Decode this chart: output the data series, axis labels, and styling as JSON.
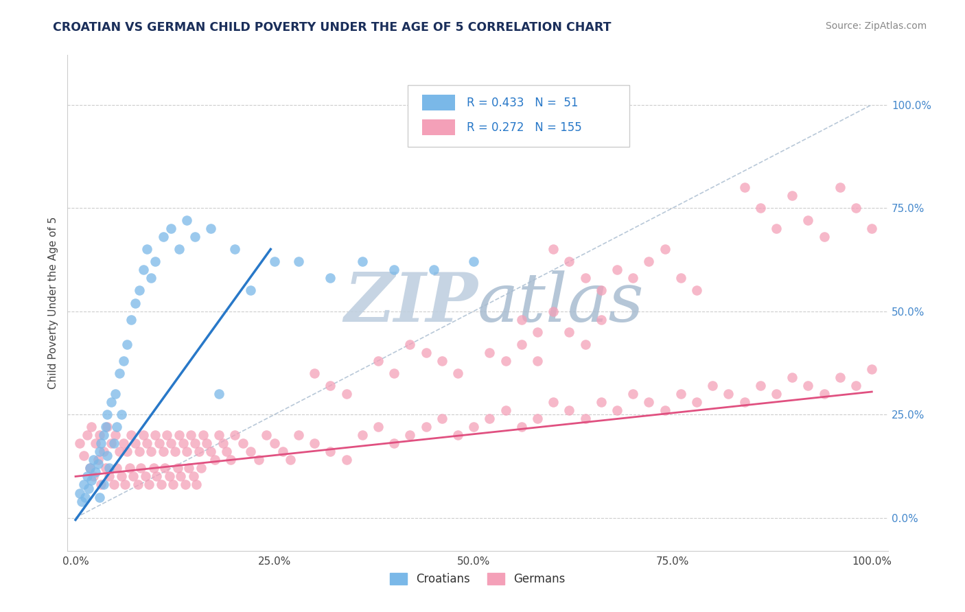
{
  "title": "CROATIAN VS GERMAN CHILD POVERTY UNDER THE AGE OF 5 CORRELATION CHART",
  "source_text": "Source: ZipAtlas.com",
  "ylabel": "Child Poverty Under the Age of 5",
  "xlim": [
    -0.01,
    1.02
  ],
  "ylim": [
    -0.08,
    1.12
  ],
  "xticks": [
    0.0,
    0.25,
    0.5,
    0.75,
    1.0
  ],
  "xticklabels": [
    "0.0%",
    "25.0%",
    "50.0%",
    "75.0%",
    "100.0%"
  ],
  "yticks_right": [
    0.0,
    0.25,
    0.5,
    0.75,
    1.0
  ],
  "yticklabels_right": [
    "0.0%",
    "25.0%",
    "50.0%",
    "75.0%",
    "100.0%"
  ],
  "croatian_color": "#7ab8e8",
  "german_color": "#f4a0b8",
  "croatian_line_color": "#2878c8",
  "german_line_color": "#e05080",
  "diagonal_color": "#b8c8d8",
  "watermark_zip_color": "#c8d8e8",
  "watermark_atlas_color": "#b8c8d8",
  "legend_text_color": "#2878c8",
  "legend_R_croatian": "R = 0.433",
  "legend_N_croatian": "N =  51",
  "legend_R_german": "R = 0.272",
  "legend_N_german": "N = 155",
  "croatian_line_x0": 0.0,
  "croatian_line_y0": -0.005,
  "croatian_line_x1": 0.245,
  "croatian_line_y1": 0.65,
  "german_line_x0": 0.0,
  "german_line_y0": 0.1,
  "german_line_x1": 1.0,
  "german_line_y1": 0.305,
  "croatian_scatter_x": [
    0.005,
    0.008,
    0.01,
    0.012,
    0.015,
    0.016,
    0.018,
    0.02,
    0.022,
    0.025,
    0.028,
    0.03,
    0.03,
    0.032,
    0.035,
    0.035,
    0.038,
    0.04,
    0.04,
    0.042,
    0.045,
    0.048,
    0.05,
    0.052,
    0.055,
    0.058,
    0.06,
    0.065,
    0.07,
    0.075,
    0.08,
    0.085,
    0.09,
    0.095,
    0.1,
    0.11,
    0.12,
    0.13,
    0.14,
    0.15,
    0.17,
    0.18,
    0.2,
    0.22,
    0.25,
    0.28,
    0.32,
    0.36,
    0.4,
    0.45,
    0.5
  ],
  "croatian_scatter_y": [
    0.06,
    0.04,
    0.08,
    0.05,
    0.1,
    0.07,
    0.12,
    0.09,
    0.14,
    0.11,
    0.13,
    0.16,
    0.05,
    0.18,
    0.2,
    0.08,
    0.22,
    0.15,
    0.25,
    0.12,
    0.28,
    0.18,
    0.3,
    0.22,
    0.35,
    0.25,
    0.38,
    0.42,
    0.48,
    0.52,
    0.55,
    0.6,
    0.65,
    0.58,
    0.62,
    0.68,
    0.7,
    0.65,
    0.72,
    0.68,
    0.7,
    0.3,
    0.65,
    0.55,
    0.62,
    0.62,
    0.58,
    0.62,
    0.6,
    0.6,
    0.62
  ],
  "german_scatter_x": [
    0.005,
    0.01,
    0.015,
    0.018,
    0.02,
    0.022,
    0.025,
    0.028,
    0.03,
    0.032,
    0.035,
    0.038,
    0.04,
    0.042,
    0.045,
    0.048,
    0.05,
    0.052,
    0.055,
    0.058,
    0.06,
    0.062,
    0.065,
    0.068,
    0.07,
    0.072,
    0.075,
    0.078,
    0.08,
    0.082,
    0.085,
    0.088,
    0.09,
    0.092,
    0.095,
    0.098,
    0.1,
    0.102,
    0.105,
    0.108,
    0.11,
    0.112,
    0.115,
    0.118,
    0.12,
    0.122,
    0.125,
    0.128,
    0.13,
    0.132,
    0.135,
    0.138,
    0.14,
    0.142,
    0.145,
    0.148,
    0.15,
    0.152,
    0.155,
    0.158,
    0.16,
    0.165,
    0.17,
    0.175,
    0.18,
    0.185,
    0.19,
    0.195,
    0.2,
    0.21,
    0.22,
    0.23,
    0.24,
    0.25,
    0.26,
    0.27,
    0.28,
    0.3,
    0.32,
    0.34,
    0.36,
    0.38,
    0.4,
    0.42,
    0.44,
    0.46,
    0.48,
    0.5,
    0.52,
    0.54,
    0.56,
    0.58,
    0.6,
    0.62,
    0.64,
    0.66,
    0.68,
    0.7,
    0.72,
    0.74,
    0.76,
    0.78,
    0.8,
    0.82,
    0.84,
    0.86,
    0.88,
    0.9,
    0.92,
    0.94,
    0.96,
    0.98,
    1.0,
    0.6,
    0.62,
    0.64,
    0.66,
    0.68,
    0.7,
    0.72,
    0.74,
    0.76,
    0.78,
    0.56,
    0.58,
    0.6,
    0.62,
    0.64,
    0.66,
    0.52,
    0.54,
    0.56,
    0.58,
    0.42,
    0.44,
    0.46,
    0.48,
    0.38,
    0.4,
    0.3,
    0.32,
    0.34,
    0.84,
    0.86,
    0.88,
    0.9,
    0.92,
    0.94,
    0.96,
    0.98,
    1.0
  ],
  "german_scatter_y": [
    0.18,
    0.15,
    0.2,
    0.12,
    0.22,
    0.1,
    0.18,
    0.14,
    0.2,
    0.08,
    0.16,
    0.12,
    0.22,
    0.1,
    0.18,
    0.08,
    0.2,
    0.12,
    0.16,
    0.1,
    0.18,
    0.08,
    0.16,
    0.12,
    0.2,
    0.1,
    0.18,
    0.08,
    0.16,
    0.12,
    0.2,
    0.1,
    0.18,
    0.08,
    0.16,
    0.12,
    0.2,
    0.1,
    0.18,
    0.08,
    0.16,
    0.12,
    0.2,
    0.1,
    0.18,
    0.08,
    0.16,
    0.12,
    0.2,
    0.1,
    0.18,
    0.08,
    0.16,
    0.12,
    0.2,
    0.1,
    0.18,
    0.08,
    0.16,
    0.12,
    0.2,
    0.18,
    0.16,
    0.14,
    0.2,
    0.18,
    0.16,
    0.14,
    0.2,
    0.18,
    0.16,
    0.14,
    0.2,
    0.18,
    0.16,
    0.14,
    0.2,
    0.18,
    0.16,
    0.14,
    0.2,
    0.22,
    0.18,
    0.2,
    0.22,
    0.24,
    0.2,
    0.22,
    0.24,
    0.26,
    0.22,
    0.24,
    0.28,
    0.26,
    0.24,
    0.28,
    0.26,
    0.3,
    0.28,
    0.26,
    0.3,
    0.28,
    0.32,
    0.3,
    0.28,
    0.32,
    0.3,
    0.34,
    0.32,
    0.3,
    0.34,
    0.32,
    0.36,
    0.65,
    0.62,
    0.58,
    0.55,
    0.6,
    0.58,
    0.62,
    0.65,
    0.58,
    0.55,
    0.48,
    0.45,
    0.5,
    0.45,
    0.42,
    0.48,
    0.4,
    0.38,
    0.42,
    0.38,
    0.42,
    0.4,
    0.38,
    0.35,
    0.38,
    0.35,
    0.35,
    0.32,
    0.3,
    0.8,
    0.75,
    0.7,
    0.78,
    0.72,
    0.68,
    0.8,
    0.75,
    0.7
  ]
}
